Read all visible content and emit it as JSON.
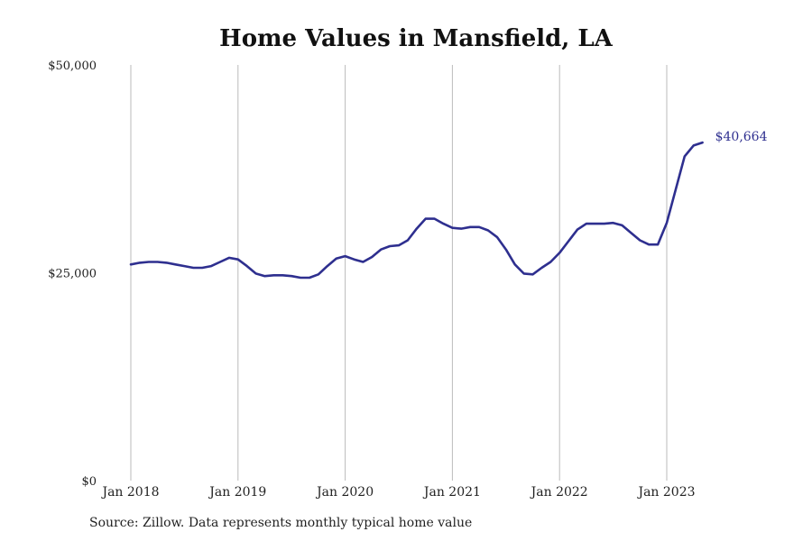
{
  "chart_data": {
    "type": "line",
    "title": "Home Values in Mansfield, LA",
    "xlabel": "",
    "ylabel": "",
    "ylim": [
      0,
      50000
    ],
    "y_ticks": [
      {
        "value": 0,
        "label": "$0"
      },
      {
        "value": 25000,
        "label": "$25,000"
      },
      {
        "value": 50000,
        "label": "$50,000"
      }
    ],
    "x_ticks": [
      {
        "value": "2018-01",
        "label": "Jan 2018"
      },
      {
        "value": "2019-01",
        "label": "Jan 2019"
      },
      {
        "value": "2020-01",
        "label": "Jan 2020"
      },
      {
        "value": "2021-01",
        "label": "Jan 2021"
      },
      {
        "value": "2022-01",
        "label": "Jan 2022"
      },
      {
        "value": "2023-01",
        "label": "Jan 2023"
      }
    ],
    "grid": {
      "vertical": true,
      "horizontal": false
    },
    "line_color": "#2e2f8f",
    "grid_color": "#bbbbbb",
    "end_label": "$40,664",
    "series": [
      {
        "x": [
          "2018-01",
          "2018-02",
          "2018-03",
          "2018-04",
          "2018-05",
          "2018-06",
          "2018-07",
          "2018-08",
          "2018-09",
          "2018-10",
          "2018-11",
          "2018-12",
          "2019-01",
          "2019-02",
          "2019-03",
          "2019-04",
          "2019-05",
          "2019-06",
          "2019-07",
          "2019-08",
          "2019-09",
          "2019-10",
          "2019-11",
          "2019-12",
          "2020-01",
          "2020-02",
          "2020-03",
          "2020-04",
          "2020-05",
          "2020-06",
          "2020-07",
          "2020-08",
          "2020-09",
          "2020-10",
          "2020-11",
          "2020-12",
          "2021-01",
          "2021-02",
          "2021-03",
          "2021-04",
          "2021-05",
          "2021-06",
          "2021-07",
          "2021-08",
          "2021-09",
          "2021-10",
          "2021-11",
          "2021-12",
          "2022-01",
          "2022-02",
          "2022-03",
          "2022-04",
          "2022-05",
          "2022-06",
          "2022-07",
          "2022-08",
          "2022-09",
          "2022-10",
          "2022-11",
          "2022-12",
          "2023-01",
          "2023-02",
          "2023-03",
          "2023-04",
          "2023-05"
        ],
        "values": [
          26000,
          26200,
          26300,
          26300,
          26200,
          26000,
          25800,
          25600,
          25600,
          25800,
          26300,
          26800,
          26600,
          25800,
          24900,
          24600,
          24700,
          24700,
          24600,
          24400,
          24400,
          24800,
          25800,
          26700,
          27000,
          26600,
          26300,
          26900,
          27800,
          28200,
          28300,
          28900,
          30300,
          31500,
          31500,
          30900,
          30400,
          30300,
          30500,
          30500,
          30100,
          29300,
          27800,
          26000,
          24900,
          24800,
          25600,
          26300,
          27400,
          28800,
          30200,
          30900,
          30900,
          30900,
          31000,
          30700,
          29800,
          28900,
          28400,
          28400,
          31000,
          35000,
          39000,
          40300,
          40664
        ]
      }
    ]
  },
  "footer": {
    "source": "Source: Zillow. Data represents monthly typical home value"
  }
}
